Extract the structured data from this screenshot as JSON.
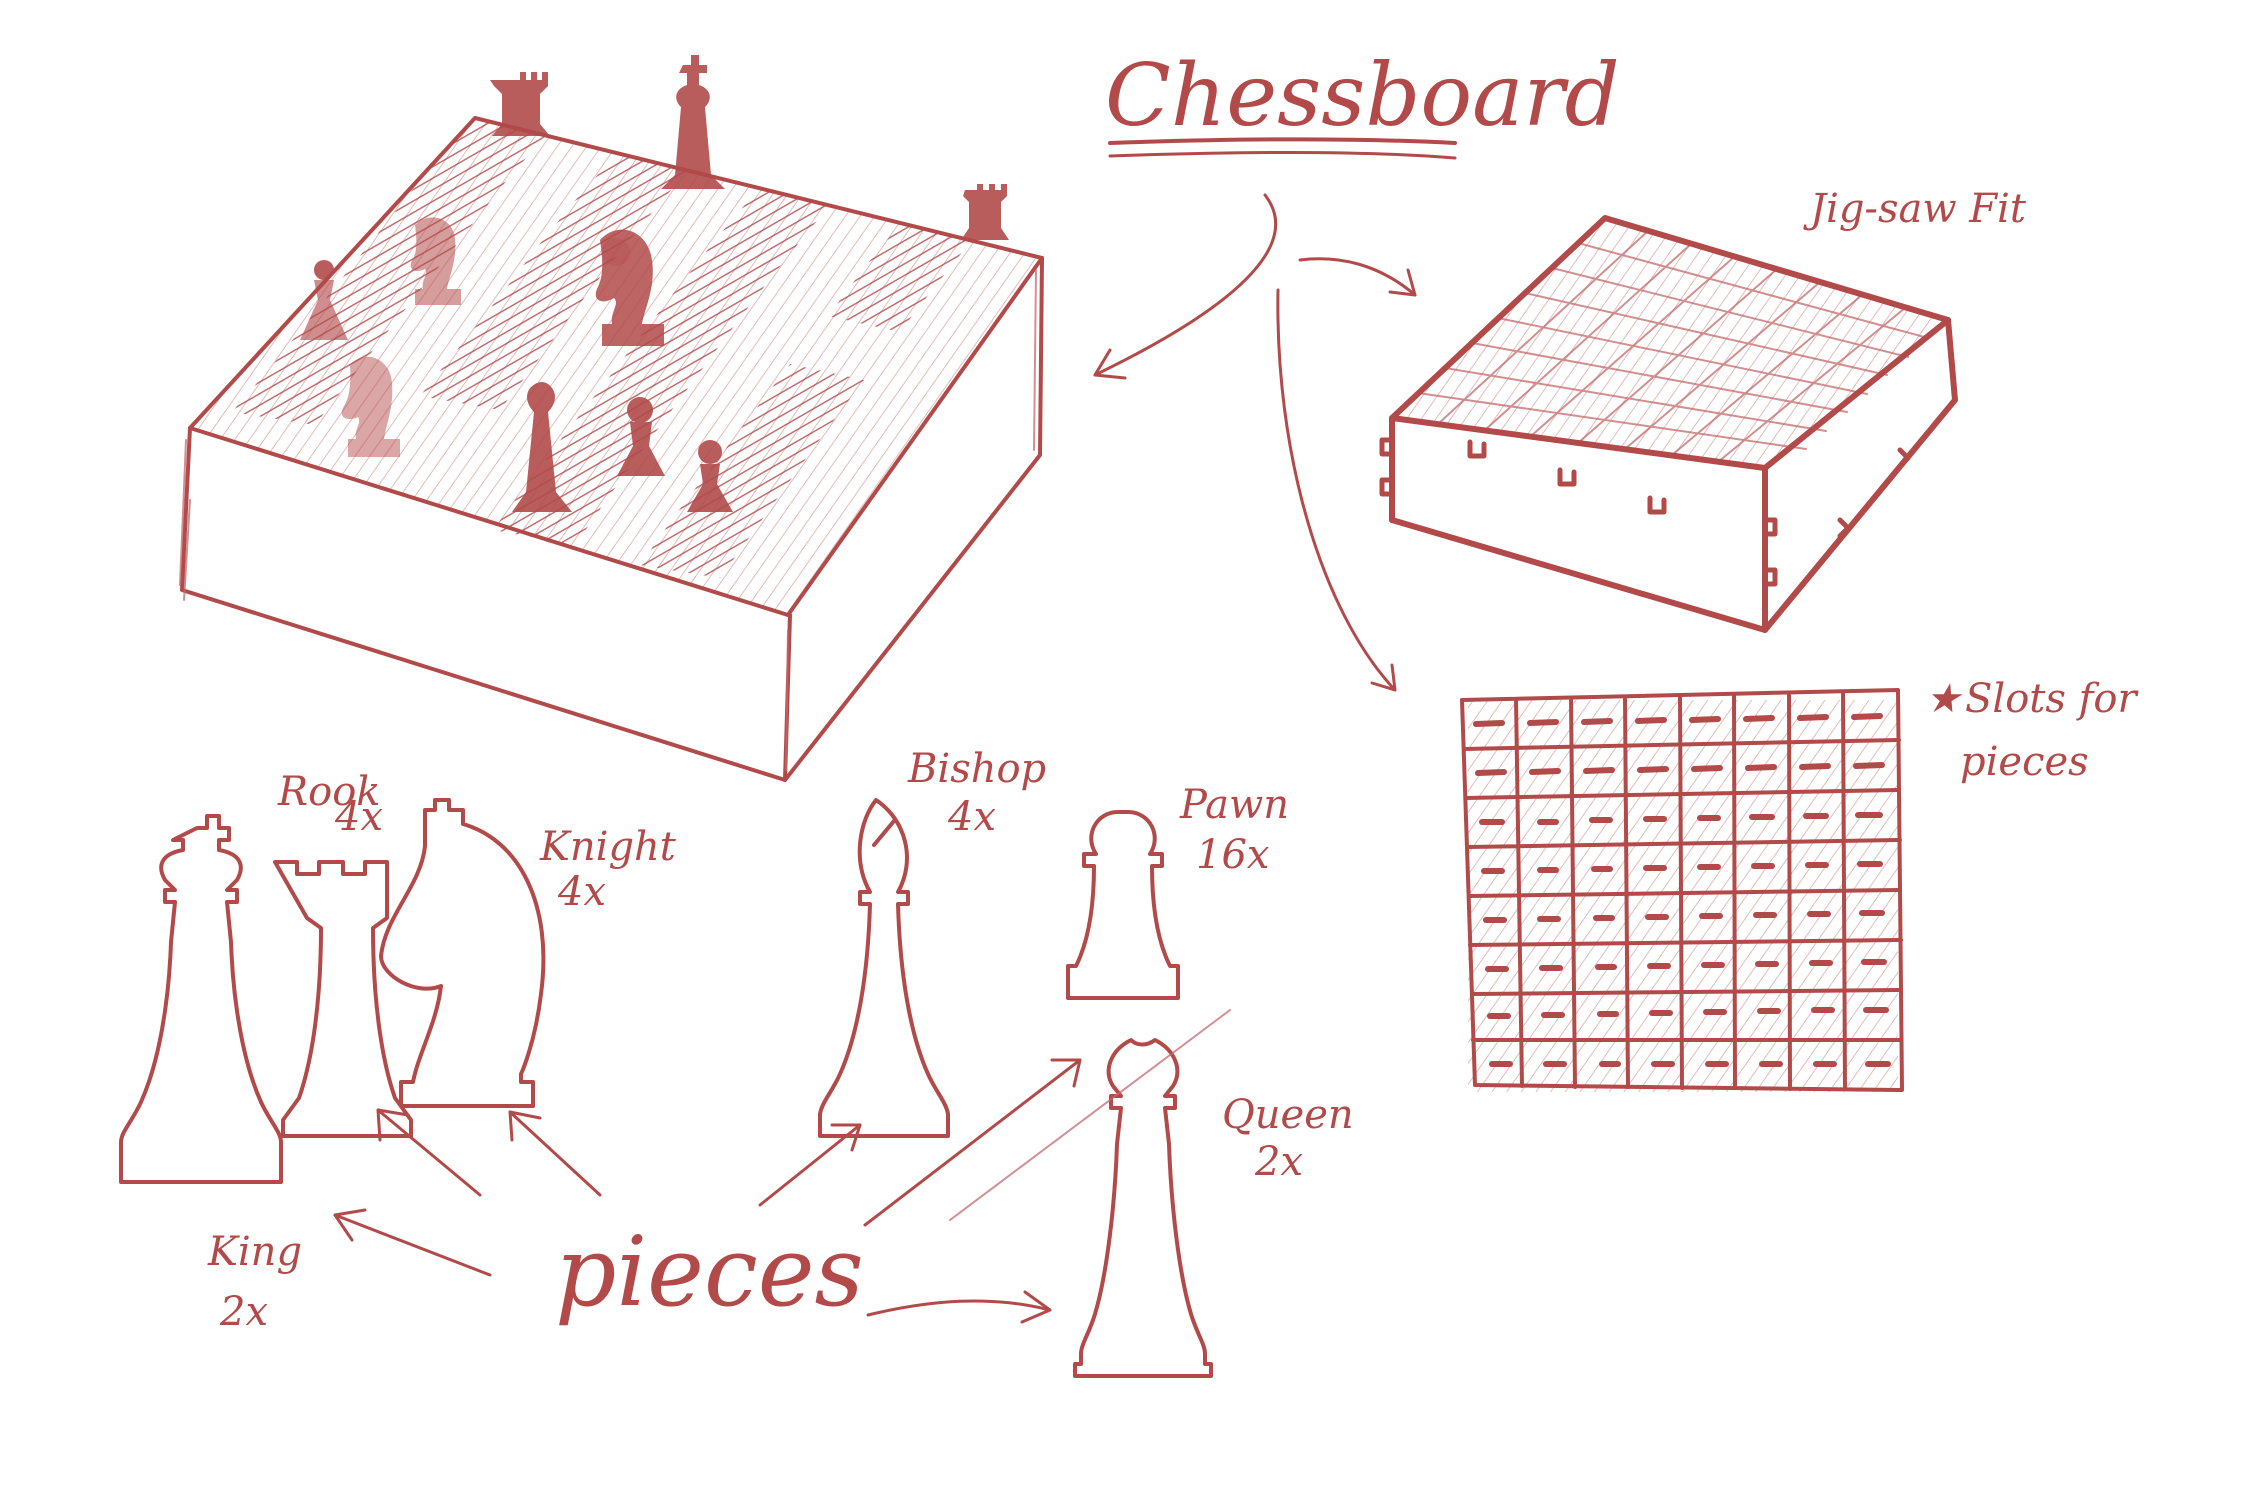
{
  "title": "Chessboard",
  "notes": {
    "jigsaw": "Jig-saw Fit",
    "slots_line1": "Slots for",
    "slots_line2": "pieces",
    "pieces": "pieces"
  },
  "pieces": [
    {
      "name": "King",
      "count": "2x"
    },
    {
      "name": "Rook",
      "count": "4x"
    },
    {
      "name": "Knight",
      "count": "4x"
    },
    {
      "name": "Bishop",
      "count": "4x"
    },
    {
      "name": "Pawn",
      "count": "16x"
    },
    {
      "name": "Queen",
      "count": "2x"
    }
  ],
  "colors": {
    "ink": "#b24a4a",
    "shade": "#c46a6a",
    "background": "#ffffff"
  },
  "icons": [
    "star-icon"
  ]
}
